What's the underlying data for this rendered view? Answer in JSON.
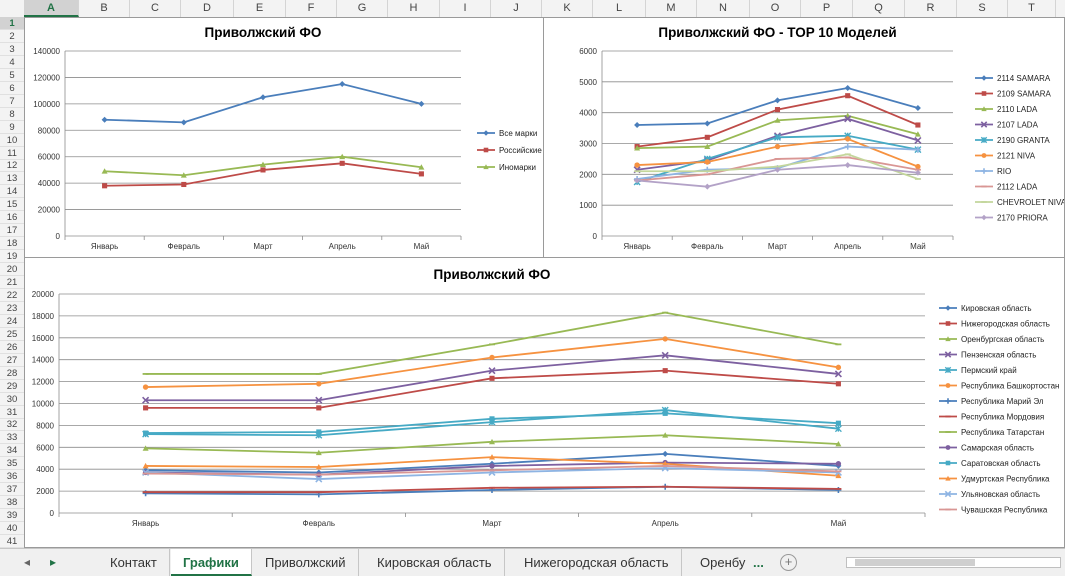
{
  "spreadsheet": {
    "columns": [
      "A",
      "B",
      "C",
      "D",
      "E",
      "F",
      "G",
      "H",
      "I",
      "J",
      "K",
      "L",
      "M",
      "N",
      "O",
      "P",
      "Q",
      "R",
      "S",
      "T"
    ],
    "selected_column": "A",
    "rows": [
      "1",
      "2",
      "3",
      "4",
      "5",
      "6",
      "7",
      "8",
      "9",
      "10",
      "11",
      "12",
      "13",
      "14",
      "15",
      "16",
      "17",
      "18",
      "19",
      "20",
      "21",
      "22",
      "23",
      "24",
      "25",
      "26",
      "27",
      "28",
      "29",
      "30",
      "31",
      "32",
      "33",
      "34",
      "35",
      "36",
      "37",
      "38",
      "39",
      "40",
      "41"
    ],
    "selected_row": "1"
  },
  "tabs": {
    "prev_icon": "left-arrow-icon",
    "next_icon": "right-arrow-icon",
    "items": [
      "Контакт",
      "Графики",
      "Приволжский",
      "Кировская область",
      "Нижегородская область",
      "Оренбу"
    ],
    "active": "Графики",
    "more": "...",
    "add_icon": "plus-circle-icon",
    "add_label": "+"
  },
  "chart_data": [
    {
      "type": "line",
      "title": "Приволжский ФО",
      "categories": [
        "Январь",
        "Февраль",
        "Март",
        "Апрель",
        "Май"
      ],
      "ylim": [
        0,
        140000
      ],
      "yticks": [
        0,
        20000,
        40000,
        60000,
        80000,
        100000,
        120000,
        140000
      ],
      "grid": true,
      "legend": "right",
      "series": [
        {
          "name": "Все марки",
          "color": "#4a7ebb",
          "marker": "diamond",
          "values": [
            88000,
            86000,
            105000,
            115000,
            100000
          ]
        },
        {
          "name": "Российские",
          "color": "#be4b48",
          "marker": "square",
          "values": [
            38000,
            39000,
            50000,
            55000,
            47000
          ]
        },
        {
          "name": "Иномарки",
          "color": "#98b954",
          "marker": "triangle",
          "values": [
            49000,
            46000,
            54000,
            60000,
            52000
          ]
        }
      ]
    },
    {
      "type": "line",
      "title": "Приволжский ФО - TOP 10 Моделей",
      "categories": [
        "Январь",
        "Февраль",
        "Март",
        "Апрель",
        "Май"
      ],
      "ylim": [
        0,
        6000
      ],
      "yticks": [
        0,
        1000,
        2000,
        3000,
        4000,
        5000,
        6000
      ],
      "grid": true,
      "legend": "right",
      "series": [
        {
          "name": "2114 SAMARA",
          "color": "#4a7ebb",
          "marker": "diamond",
          "values": [
            3600,
            3650,
            4400,
            4800,
            4150
          ]
        },
        {
          "name": "2109 SAMARA",
          "color": "#be4b48",
          "marker": "square",
          "values": [
            2900,
            3200,
            4100,
            4550,
            3600
          ]
        },
        {
          "name": "2110 LADA",
          "color": "#98b954",
          "marker": "triangle",
          "values": [
            2850,
            2900,
            3750,
            3900,
            3300
          ]
        },
        {
          "name": "2107 LADA",
          "color": "#7d60a0",
          "marker": "x",
          "values": [
            2150,
            2450,
            3250,
            3800,
            3100
          ]
        },
        {
          "name": "2190 GRANTA",
          "color": "#46aac5",
          "marker": "asterisk",
          "values": [
            1750,
            2500,
            3200,
            3250,
            2800
          ]
        },
        {
          "name": "2121 NIVA",
          "color": "#f69240",
          "marker": "circle",
          "values": [
            2300,
            2400,
            2900,
            3150,
            2250
          ]
        },
        {
          "name": "RIO",
          "color": "#8eb4e3",
          "marker": "plus",
          "values": [
            1850,
            2150,
            2200,
            2900,
            2800
          ]
        },
        {
          "name": "2112 LADA",
          "color": "#d99694",
          "marker": "dash",
          "values": [
            1800,
            2000,
            2500,
            2550,
            2150
          ]
        },
        {
          "name": "CHEVROLET NIVA",
          "color": "#c3d69b",
          "marker": "dash",
          "values": [
            2100,
            2100,
            2250,
            2650,
            1850
          ]
        },
        {
          "name": "2170 PRIORA",
          "color": "#b3a2c7",
          "marker": "diamond",
          "values": [
            1800,
            1600,
            2150,
            2300,
            2050
          ]
        }
      ]
    },
    {
      "type": "line",
      "title": "Приволжский ФО",
      "categories": [
        "Январь",
        "Февраль",
        "Март",
        "Апрель",
        "Май"
      ],
      "ylim": [
        0,
        20000
      ],
      "yticks": [
        0,
        2000,
        4000,
        6000,
        8000,
        10000,
        12000,
        14000,
        16000,
        18000,
        20000
      ],
      "grid": true,
      "legend": "right",
      "series": [
        {
          "name": "Кировская область",
          "color": "#4a7ebb",
          "marker": "diamond",
          "values": [
            3900,
            3700,
            4500,
            5400,
            4300
          ]
        },
        {
          "name": "Нижегородская область",
          "color": "#be4b48",
          "marker": "square",
          "values": [
            9600,
            9600,
            12300,
            13000,
            11800
          ]
        },
        {
          "name": "Оренбургская область",
          "color": "#98b954",
          "marker": "triangle",
          "values": [
            5900,
            5500,
            6500,
            7100,
            6300
          ]
        },
        {
          "name": "Пензенская область",
          "color": "#7d60a0",
          "marker": "x",
          "values": [
            10300,
            10300,
            13000,
            14400,
            12700
          ]
        },
        {
          "name": "Пермский край",
          "color": "#46aac5",
          "marker": "asterisk",
          "values": [
            7200,
            7100,
            8300,
            9400,
            7700
          ]
        },
        {
          "name": "Республика Башкортостан",
          "color": "#f69240",
          "marker": "circle",
          "values": [
            11500,
            11800,
            14200,
            15900,
            13300
          ]
        },
        {
          "name": "Республика Марий Эл",
          "color": "#4a7ebb",
          "marker": "plus",
          "values": [
            1800,
            1700,
            2100,
            2400,
            2100
          ]
        },
        {
          "name": "Республика Мордовия",
          "color": "#be4b48",
          "marker": "dash",
          "values": [
            1900,
            1900,
            2300,
            2400,
            2200
          ]
        },
        {
          "name": "Республика Татарстан",
          "color": "#98b954",
          "marker": "dash",
          "values": [
            12700,
            12700,
            15400,
            18300,
            15400
          ]
        },
        {
          "name": "Самарская область",
          "color": "#7d60a0",
          "marker": "circle",
          "values": [
            3700,
            3500,
            4300,
            4600,
            4500
          ]
        },
        {
          "name": "Саратовская область",
          "color": "#46aac5",
          "marker": "square",
          "values": [
            7300,
            7400,
            8600,
            9100,
            8200
          ]
        },
        {
          "name": "Удмуртская Республика",
          "color": "#f69240",
          "marker": "triangle",
          "values": [
            4300,
            4200,
            5100,
            4500,
            3400
          ]
        },
        {
          "name": "Ульяновская область",
          "color": "#8eb4e3",
          "marker": "x",
          "values": [
            3700,
            3100,
            3700,
            4100,
            3700
          ]
        },
        {
          "name": "Чувашская Республика",
          "color": "#d99694",
          "marker": "dash",
          "values": [
            3600,
            3500,
            3900,
            4300,
            3800
          ]
        }
      ]
    }
  ]
}
